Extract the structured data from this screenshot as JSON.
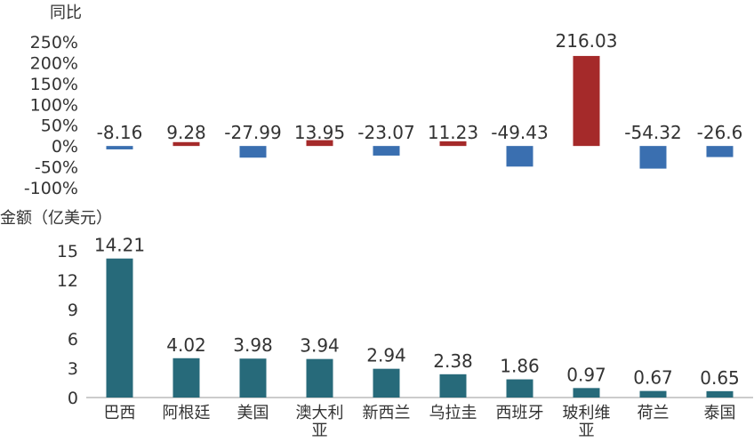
{
  "chart_data": [
    {
      "type": "bar",
      "title": "",
      "ylabel": "同比",
      "y_tick_labels": [
        "250%",
        "200%",
        "150%",
        "100%",
        "50%",
        "0%",
        "-50%",
        "-100%"
      ],
      "y_ticks": [
        250,
        200,
        150,
        100,
        50,
        0,
        -50,
        -100
      ],
      "ylim": [
        -100,
        250
      ],
      "categories": [
        "巴西",
        "阿根廷",
        "美国",
        "澳大利亚",
        "新西兰",
        "乌拉圭",
        "西班牙",
        "玻利维亚",
        "荷兰",
        "泰国"
      ],
      "values": [
        -8.16,
        9.28,
        -27.99,
        13.95,
        -23.07,
        11.23,
        -49.43,
        216.03,
        -54.32,
        -26.6
      ],
      "value_labels": [
        "-8.16",
        "9.28",
        "-27.99",
        "13.95",
        "-23.07",
        "11.23",
        "-49.43",
        "216.03",
        "-54.32",
        "-26.6"
      ],
      "colors": {
        "positive": "#A52A2A",
        "negative": "#3A6FB0"
      },
      "grid": false,
      "legend": "none"
    },
    {
      "type": "bar",
      "title": "",
      "ylabel": "金额（亿美元）",
      "y_tick_labels": [
        "15",
        "12",
        "9",
        "6",
        "3",
        "0"
      ],
      "y_ticks": [
        15,
        12,
        9,
        6,
        3,
        0
      ],
      "ylim": [
        0,
        15
      ],
      "categories": [
        "巴西",
        "阿根廷",
        "美国",
        "澳大利亚",
        "新西兰",
        "乌拉圭",
        "西班牙",
        "玻利维亚",
        "荷兰",
        "泰国"
      ],
      "category_lines": [
        [
          "巴西"
        ],
        [
          "阿根廷"
        ],
        [
          "美国"
        ],
        [
          "澳大利",
          "亚"
        ],
        [
          "新西兰"
        ],
        [
          "乌拉圭"
        ],
        [
          "西班牙"
        ],
        [
          "玻利维",
          "亚"
        ],
        [
          "荷兰"
        ],
        [
          "泰国"
        ]
      ],
      "values": [
        14.21,
        4.02,
        3.98,
        3.94,
        2.94,
        2.38,
        1.86,
        0.97,
        0.67,
        0.65
      ],
      "value_labels": [
        "14.21",
        "4.02",
        "3.98",
        "3.94",
        "2.94",
        "2.38",
        "1.86",
        "0.97",
        "0.67",
        "0.65"
      ],
      "colors": {
        "bar": "#276A7A",
        "axis": "#999999"
      },
      "grid": false,
      "legend": "none"
    }
  ]
}
